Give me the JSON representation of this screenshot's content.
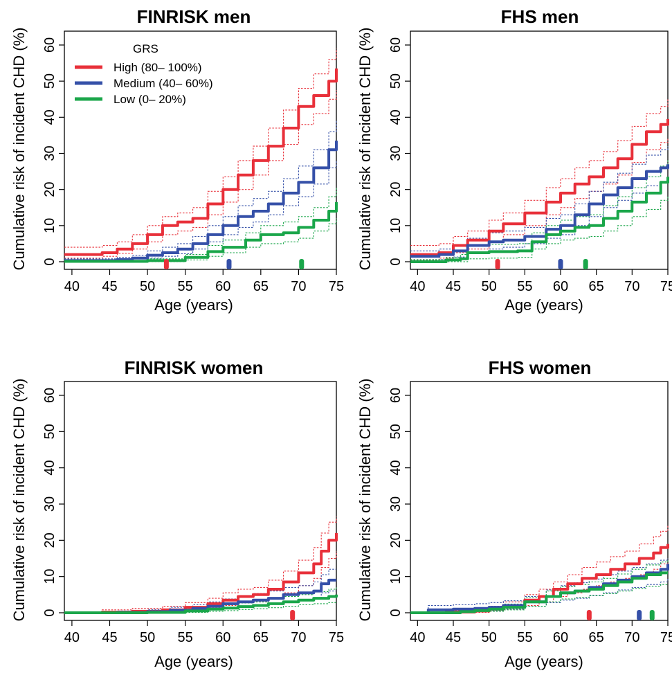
{
  "colors": {
    "high": "#e8303a",
    "medium": "#3550a8",
    "low": "#1aa64a"
  },
  "chart_data": [
    {
      "type": "line",
      "title": "FINRISK men",
      "xlabel": "Age (years)",
      "ylabel": "Cumulative risk of incident CHD (%)",
      "xlim": [
        39,
        75
      ],
      "ylim": [
        0,
        60
      ],
      "xticks": [
        40,
        45,
        50,
        55,
        60,
        65,
        70,
        75
      ],
      "yticks": [
        0,
        10,
        20,
        30,
        40,
        50,
        60
      ],
      "legend": {
        "title": "GRS",
        "placement": "top-left",
        "entries": [
          "High (80– 100%)",
          "Medium (40– 60%)",
          "Low (0– 20%)"
        ]
      },
      "series": [
        {
          "name": "High (80– 100%)",
          "color_key": "high",
          "x": [
            39,
            44,
            46,
            48,
            50,
            52,
            54,
            56,
            58,
            60,
            62,
            64,
            66,
            68,
            70,
            72,
            74,
            75
          ],
          "y": [
            2,
            2.5,
            3.5,
            5,
            7.5,
            10,
            11,
            12,
            16,
            20,
            24,
            28,
            32,
            37,
            43,
            46,
            50,
            53.5
          ],
          "lower": [
            1,
            1.5,
            2.3,
            3.5,
            5.5,
            7.5,
            8.5,
            9.5,
            13,
            16.5,
            20,
            24,
            28,
            32.5,
            38,
            41,
            45,
            47.5
          ],
          "upper": [
            4,
            4.5,
            5.5,
            7.5,
            10,
            12.5,
            13.5,
            15,
            19.5,
            23.5,
            28,
            32,
            37,
            42,
            48,
            52,
            56,
            59
          ]
        },
        {
          "name": "Medium (40– 60%)",
          "color_key": "medium",
          "x": [
            39,
            46,
            48,
            50,
            52,
            54,
            56,
            58,
            60,
            62,
            64,
            66,
            68,
            70,
            72,
            74,
            75
          ],
          "y": [
            0.3,
            0.6,
            1,
            1.8,
            2.5,
            3.5,
            5,
            7.5,
            10,
            12.5,
            14,
            16,
            19,
            22,
            26,
            31,
            33.5
          ],
          "lower": [
            0,
            0.1,
            0.4,
            1,
            1.5,
            2.2,
            3.5,
            5.5,
            7.5,
            9.5,
            11,
            13,
            15.5,
            18,
            21.5,
            26,
            28
          ],
          "upper": [
            0.8,
            1.2,
            1.8,
            3,
            4,
            5,
            7,
            10,
            12.5,
            15.5,
            17.5,
            19.5,
            23,
            26.5,
            31,
            36,
            39
          ]
        },
        {
          "name": "Low (0– 20%)",
          "color_key": "low",
          "x": [
            39,
            50,
            55,
            58,
            60,
            63,
            65,
            68,
            70,
            72,
            74,
            75
          ],
          "y": [
            0.1,
            0.3,
            1.2,
            2.8,
            4,
            6,
            7.5,
            8,
            9.5,
            11.5,
            14,
            16.5
          ],
          "lower": [
            0,
            0,
            0.5,
            1.5,
            2.5,
            4,
            5,
            5.5,
            6.5,
            8.5,
            10.5,
            12
          ],
          "upper": [
            0.4,
            0.8,
            2,
            4.5,
            6,
            8,
            10,
            11,
            12.5,
            15,
            18,
            20.5
          ]
        }
      ],
      "median_markers": [
        {
          "color_key": "high",
          "x": 52.5
        },
        {
          "color_key": "medium",
          "x": 60.8
        },
        {
          "color_key": "low",
          "x": 70.4
        }
      ]
    },
    {
      "type": "line",
      "title": "FHS men",
      "xlabel": "Age (years)",
      "ylabel": "Cumulative risk of incident CHD (%)",
      "xlim": [
        39,
        75
      ],
      "ylim": [
        0,
        60
      ],
      "xticks": [
        40,
        45,
        50,
        55,
        60,
        65,
        70,
        75
      ],
      "yticks": [
        0,
        10,
        20,
        30,
        40,
        50,
        60
      ],
      "series": [
        {
          "name": "High (80– 100%)",
          "color_key": "high",
          "x": [
            39,
            43,
            45,
            47,
            50,
            52,
            55,
            58,
            60,
            62,
            64,
            66,
            68,
            70,
            72,
            74,
            75
          ],
          "y": [
            2,
            2.5,
            4.5,
            6,
            8.5,
            10.5,
            13.5,
            16.5,
            19,
            21.5,
            23.5,
            26,
            28.5,
            32.5,
            36,
            38,
            39.5
          ],
          "lower": [
            0.5,
            1,
            2.5,
            3.5,
            5.5,
            7.5,
            10,
            13,
            15,
            17.5,
            19.5,
            21.5,
            24,
            27.5,
            31,
            33,
            34
          ],
          "upper": [
            4.5,
            5,
            7,
            8.5,
            11.5,
            13.5,
            17,
            20.5,
            23,
            26,
            28,
            30.5,
            33.5,
            37.5,
            41,
            43,
            45
          ]
        },
        {
          "name": "Medium (40– 60%)",
          "color_key": "medium",
          "x": [
            39,
            43,
            45,
            47,
            50,
            52,
            55,
            58,
            60,
            62,
            64,
            66,
            68,
            70,
            72,
            74,
            75
          ],
          "y": [
            1.5,
            2,
            3,
            4.5,
            5.5,
            6,
            7,
            9,
            10,
            13,
            16,
            18.5,
            20.5,
            23,
            25,
            26,
            27
          ],
          "lower": [
            0.3,
            0.6,
            1.3,
            2.5,
            3.5,
            4,
            5,
            6.5,
            7.5,
            10,
            12.5,
            15,
            17,
            19,
            21,
            22,
            22.5
          ],
          "upper": [
            3,
            3.5,
            4.5,
            6.5,
            8,
            8.5,
            9.5,
            12,
            13,
            16,
            19.5,
            22,
            24.5,
            27,
            29.5,
            31,
            32
          ]
        },
        {
          "name": "Low (0– 20%)",
          "color_key": "low",
          "x": [
            39,
            44,
            46,
            47,
            50,
            54,
            56,
            58,
            60,
            62,
            64,
            66,
            68,
            70,
            72,
            74,
            75
          ],
          "y": [
            0,
            0.5,
            0.8,
            2.5,
            2.8,
            3,
            5.5,
            7.5,
            8.5,
            9.5,
            10,
            12,
            14,
            16.5,
            19,
            22,
            23.5
          ],
          "lower": [
            0,
            0,
            0,
            0.8,
            1,
            1.2,
            3.5,
            5,
            6,
            6.5,
            7,
            8.5,
            10,
            12.5,
            14.5,
            17,
            18
          ],
          "upper": [
            0.6,
            1.2,
            2,
            4.5,
            4.8,
            5,
            8,
            10,
            11.5,
            12.5,
            13,
            15.5,
            18,
            20.5,
            23.5,
            26.5,
            28.5
          ]
        }
      ],
      "median_markers": [
        {
          "color_key": "high",
          "x": 51.2
        },
        {
          "color_key": "medium",
          "x": 60.0
        },
        {
          "color_key": "low",
          "x": 63.5
        }
      ]
    },
    {
      "type": "line",
      "title": "FINRISK women",
      "xlabel": "Age (years)",
      "ylabel": "Cumulative risk of incident CHD (%)",
      "xlim": [
        39,
        75
      ],
      "ylim": [
        0,
        60
      ],
      "xticks": [
        40,
        45,
        50,
        55,
        60,
        65,
        70,
        75
      ],
      "yticks": [
        0,
        10,
        20,
        30,
        40,
        50,
        60
      ],
      "series": [
        {
          "name": "High (80– 100%)",
          "color_key": "high",
          "x": [
            39,
            44,
            48,
            52,
            55,
            58,
            60,
            62,
            64,
            66,
            68,
            70,
            72,
            73,
            74,
            75
          ],
          "y": [
            0,
            0.2,
            0.4,
            0.8,
            1.5,
            2.5,
            3.5,
            4.5,
            5,
            6.5,
            8.5,
            11,
            13.5,
            17,
            20,
            22
          ],
          "lower": [
            0,
            0,
            0.1,
            0.3,
            0.7,
            1.3,
            2,
            2.7,
            3,
            4,
            5.5,
            7.5,
            9.5,
            12.5,
            15,
            17
          ],
          "upper": [
            0,
            0.8,
            1.2,
            1.8,
            2.8,
            4,
            5.5,
            6.5,
            7,
            9,
            11.5,
            14.5,
            18,
            22,
            25,
            26.5
          ]
        },
        {
          "name": "Medium (40– 60%)",
          "color_key": "medium",
          "x": [
            39,
            46,
            50,
            53,
            56,
            58,
            60,
            62,
            64,
            66,
            68,
            70,
            72,
            73,
            74,
            75
          ],
          "y": [
            0,
            0.1,
            0.3,
            0.7,
            1.2,
            1.8,
            2.5,
            3,
            3.5,
            4,
            5,
            5.5,
            6,
            8,
            9,
            9
          ],
          "lower": [
            0,
            0,
            0,
            0.2,
            0.5,
            0.9,
            1.3,
            1.7,
            2,
            2.5,
            3.2,
            3.5,
            4,
            5.5,
            6,
            6
          ],
          "upper": [
            0,
            0.5,
            0.9,
            1.5,
            2.2,
            3,
            3.8,
            4.5,
            5.3,
            6,
            7,
            7.5,
            8.5,
            10.5,
            12,
            12
          ]
        },
        {
          "name": "Low (0– 20%)",
          "color_key": "low",
          "x": [
            39,
            50,
            55,
            58,
            60,
            62,
            64,
            66,
            68,
            70,
            72,
            74,
            75
          ],
          "y": [
            0,
            0.1,
            0.5,
            1,
            1.3,
            1.7,
            2,
            2.5,
            3,
            3.5,
            4,
            4.5,
            5
          ],
          "lower": [
            0,
            0,
            0.1,
            0.4,
            0.6,
            0.9,
            1.1,
            1.4,
            1.8,
            2.2,
            2.5,
            2.8,
            3
          ],
          "upper": [
            0,
            0.4,
            1,
            1.8,
            2.2,
            2.7,
            3,
            3.8,
            4.5,
            5,
            5.8,
            6.5,
            7
          ]
        }
      ],
      "median_markers": [
        {
          "color_key": "high",
          "x": 69.2
        }
      ]
    },
    {
      "type": "line",
      "title": "FHS women",
      "xlabel": "Age (years)",
      "ylabel": "Cumulative risk of incident CHD (%)",
      "xlim": [
        39,
        75
      ],
      "ylim": [
        0,
        60
      ],
      "xticks": [
        40,
        45,
        50,
        55,
        60,
        65,
        70,
        75
      ],
      "yticks": [
        0,
        10,
        20,
        30,
        40,
        50,
        60
      ],
      "series": [
        {
          "name": "High (80– 100%)",
          "color_key": "high",
          "x": [
            39,
            44,
            48,
            50,
            52,
            55,
            57,
            59,
            61,
            63,
            65,
            67,
            69,
            71,
            73,
            74,
            75
          ],
          "y": [
            0,
            0.2,
            0.5,
            1,
            2,
            3.5,
            4.5,
            6.5,
            8,
            9.5,
            10.5,
            12,
            13.5,
            15,
            16.5,
            18,
            19
          ],
          "lower": [
            0,
            0,
            0.1,
            0.4,
            1,
            2,
            3,
            4.5,
            5.5,
            6.5,
            7.5,
            8.5,
            9.5,
            10.5,
            12,
            13.5,
            14.5
          ],
          "upper": [
            0,
            0.6,
            1,
            1.8,
            3,
            5,
            6.5,
            8.5,
            10.5,
            12.5,
            14,
            15.5,
            17,
            19,
            21,
            22.5,
            24
          ]
        },
        {
          "name": "Medium (40– 60%)",
          "color_key": "medium",
          "x": [
            39,
            41.5,
            45,
            48,
            50,
            52,
            55,
            58,
            60,
            62,
            64,
            66,
            68,
            70,
            72,
            74,
            75
          ],
          "y": [
            0,
            0.8,
            1,
            1.2,
            1.5,
            2,
            3,
            4.5,
            5.5,
            6,
            7,
            8,
            9,
            10,
            11,
            12,
            13.5
          ],
          "lower": [
            0,
            0.1,
            0.3,
            0.4,
            0.6,
            1,
            1.8,
            2.8,
            3.5,
            4,
            4.8,
            5.5,
            6.3,
            7,
            7.8,
            8.5,
            9.5
          ],
          "upper": [
            0,
            2,
            2.2,
            2.5,
            2.8,
            3.3,
            4.5,
            6.3,
            7.5,
            8.3,
            9.3,
            10.5,
            11.5,
            12.5,
            13.5,
            14.5,
            15
          ]
        },
        {
          "name": "Low (0– 20%)",
          "color_key": "low",
          "x": [
            39,
            46,
            48,
            50,
            52,
            55,
            58,
            60,
            62,
            64,
            66,
            68,
            70,
            72,
            74,
            75
          ],
          "y": [
            0,
            0.3,
            0.6,
            1,
            1.5,
            3,
            4.5,
            5.5,
            6,
            6.5,
            7.5,
            8.5,
            9.5,
            10.5,
            11,
            11
          ],
          "lower": [
            0,
            0,
            0.2,
            0.4,
            0.8,
            1.8,
            3,
            3.8,
            4.2,
            4.7,
            5.3,
            6,
            6.7,
            7.3,
            7.8,
            8
          ],
          "upper": [
            0,
            0.9,
            1.2,
            1.7,
            2.4,
            4.2,
            6,
            7.2,
            7.8,
            8.5,
            9.5,
            10.7,
            12,
            13.2,
            14,
            14.5
          ]
        }
      ],
      "median_markers": [
        {
          "color_key": "high",
          "x": 64.0
        },
        {
          "color_key": "medium",
          "x": 71.0
        },
        {
          "color_key": "low",
          "x": 72.8
        }
      ]
    }
  ]
}
